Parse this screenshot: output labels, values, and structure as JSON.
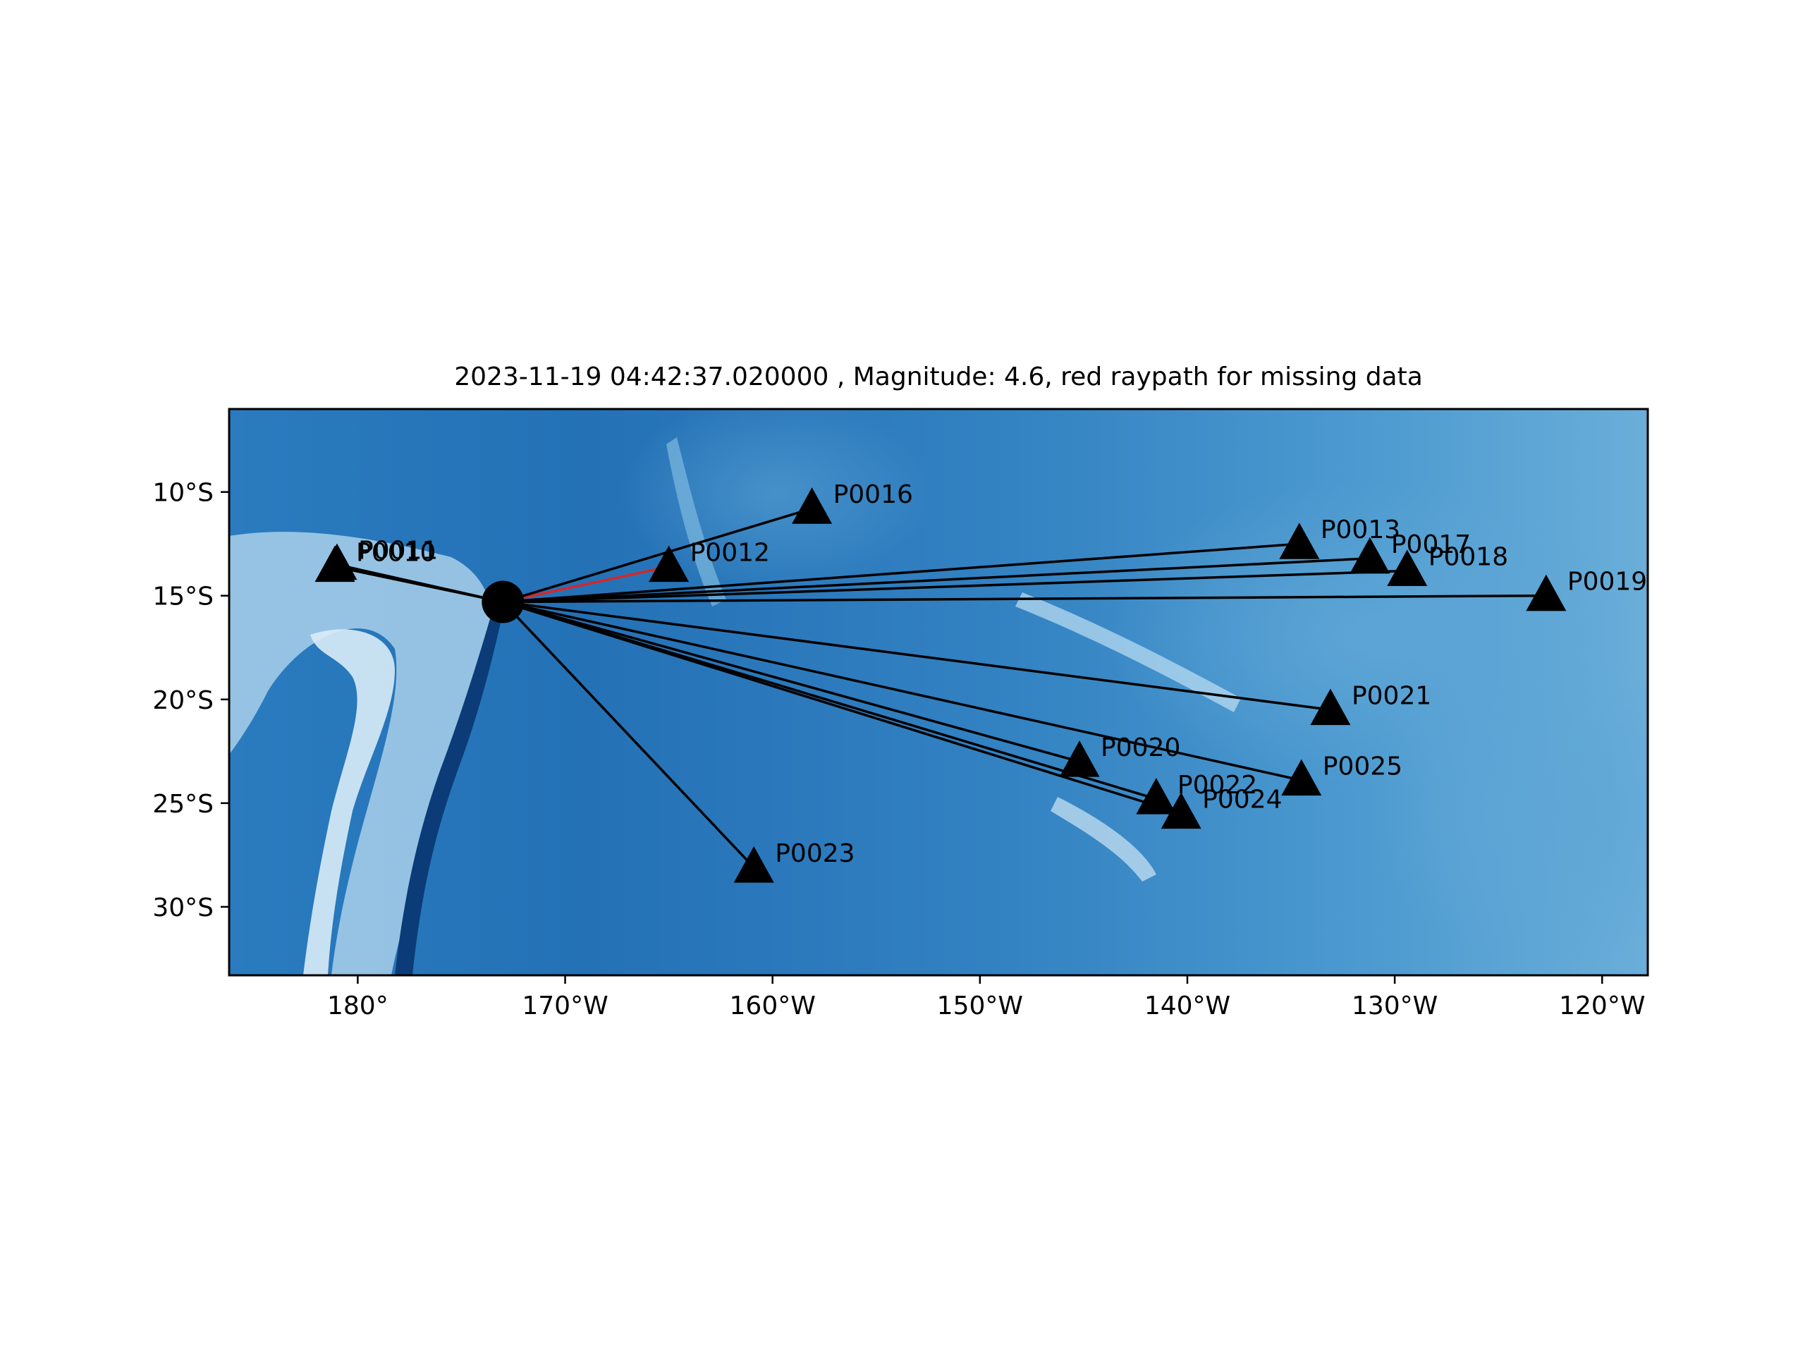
{
  "title": "2023-11-19 04:42:37.020000 , Magnitude: 4.6, red raypath for missing data",
  "map": {
    "lon_range": [
      -186.2,
      -117.8
    ],
    "lat_range": [
      -33.3,
      -6.0
    ],
    "x_ticks": [
      {
        "lon": -180,
        "label": "180°"
      },
      {
        "lon": -170,
        "label": "170°W"
      },
      {
        "lon": -160,
        "label": "160°W"
      },
      {
        "lon": -150,
        "label": "150°W"
      },
      {
        "lon": -140,
        "label": "140°W"
      },
      {
        "lon": -130,
        "label": "130°W"
      },
      {
        "lon": -120,
        "label": "120°W"
      }
    ],
    "y_ticks": [
      {
        "lat": -10,
        "label": "10°S"
      },
      {
        "lat": -15,
        "label": "15°S"
      },
      {
        "lat": -20,
        "label": "20°S"
      },
      {
        "lat": -25,
        "label": "25°S"
      },
      {
        "lat": -30,
        "label": "30°S"
      }
    ],
    "colors": {
      "ocean_deep": "#1f6fb4",
      "ocean_mid": "#3a8ac6",
      "ocean_light": "#67acd9",
      "shallow": "#cde4f3",
      "trench": "#0b3c78",
      "ray_ok": "#000000",
      "ray_missing": "#d62728",
      "marker": "#000000"
    },
    "event": {
      "lon": -173.0,
      "lat": -15.3
    },
    "stations": [
      {
        "name": "P0010",
        "lon": -181.1,
        "lat": -13.6,
        "missing": false
      },
      {
        "name": "P0011",
        "lon": -181.0,
        "lat": -13.5,
        "missing": false
      },
      {
        "name": "P0012",
        "lon": -165.0,
        "lat": -13.6,
        "missing": true
      },
      {
        "name": "P0016",
        "lon": -158.1,
        "lat": -10.8,
        "missing": false
      },
      {
        "name": "P0013",
        "lon": -134.6,
        "lat": -12.5,
        "missing": false
      },
      {
        "name": "P0017",
        "lon": -131.2,
        "lat": -13.2,
        "missing": false
      },
      {
        "name": "P0018",
        "lon": -129.4,
        "lat": -13.8,
        "missing": false
      },
      {
        "name": "P0019",
        "lon": -122.7,
        "lat": -15.0,
        "missing": false
      },
      {
        "name": "P0021",
        "lon": -133.1,
        "lat": -20.5,
        "missing": false
      },
      {
        "name": "P0020",
        "lon": -145.2,
        "lat": -23.0,
        "missing": false
      },
      {
        "name": "P0025",
        "lon": -134.5,
        "lat": -23.9,
        "missing": false
      },
      {
        "name": "P0022",
        "lon": -141.5,
        "lat": -24.8,
        "missing": false
      },
      {
        "name": "P0024",
        "lon": -140.3,
        "lat": -25.5,
        "missing": false
      },
      {
        "name": "P0023",
        "lon": -160.9,
        "lat": -28.1,
        "missing": false
      }
    ]
  }
}
